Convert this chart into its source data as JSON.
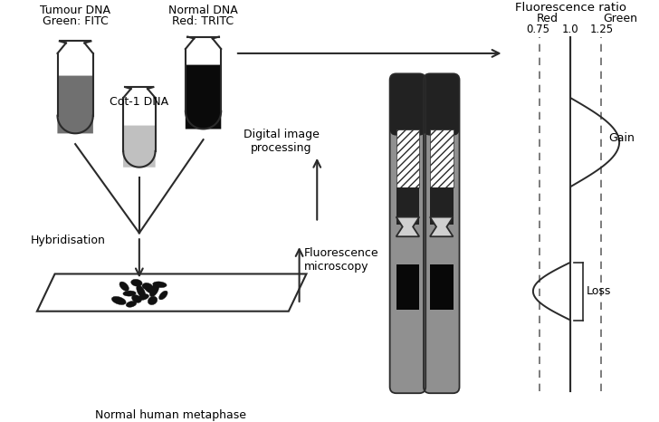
{
  "bg_color": "#ffffff",
  "tube1_label1": "Tumour DNA",
  "tube1_label2": "Green: FITC",
  "tube2_label1": "Normal DNA",
  "tube2_label2": "Red: TRITC",
  "tube3_label": "Cot-1 DNA",
  "hybridisation_label": "Hybridisation",
  "metaphase_label": "Normal human metaphase",
  "digital_label": "Digital image\nprocessing",
  "fluorescence_label": "Fluorescence\nmicroscopy",
  "ratio_title": "Fluorescence ratio",
  "red_label": "Red",
  "green_label": "Green",
  "ratio_values": [
    "0.75",
    "1.0",
    "1.25"
  ],
  "gain_label": "Gain",
  "loss_label": "Loss",
  "tube1_fill": "#707070",
  "tube2_fill": "#0a0a0a",
  "tube3_fill": "#c0c0c0",
  "text_color": "#000000",
  "line_color": "#2a2a2a",
  "chr_gray": "#909090",
  "chr_dark": "#222222",
  "chr_black": "#080808",
  "chr_centromere": "#d0d0d0"
}
